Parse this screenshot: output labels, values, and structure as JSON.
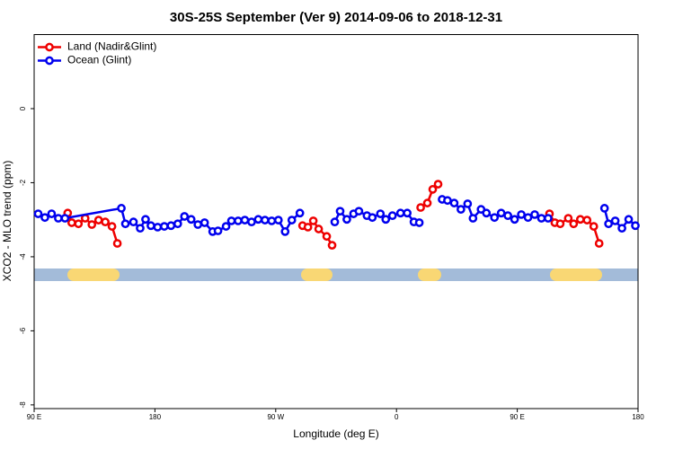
{
  "chart_data": {
    "type": "line",
    "title": "30S-25S September (Ver 9)   2014-09-06 to 2018-12-31",
    "x_label": "Longitude (deg E)",
    "y_label": "XCO2 - MLO trend (ppm)",
    "xlim": [
      90,
      540
    ],
    "ylim": [
      -8.1,
      2.0
    ],
    "xticks": [
      {
        "value": 90,
        "label": "90 E"
      },
      180,
      {
        "value": 270,
        "label": "90 W"
      },
      {
        "value": 360,
        "label": "0"
      },
      {
        "value": 450,
        "label": "90 E"
      },
      {
        "value": 540,
        "label": "180"
      }
    ],
    "yticks": [
      0,
      -2,
      -4,
      -6,
      -8
    ],
    "legend": "top-left",
    "series": [
      {
        "name": "Land (Nadir&Glint)",
        "color": "#ee0000",
        "x": [
          115,
          118,
          123,
          128,
          133,
          138,
          143,
          148,
          152,
          null,
          290,
          294,
          298,
          302,
          308,
          312,
          null,
          378,
          383,
          387,
          391,
          null,
          474,
          478,
          482,
          488,
          492,
          497,
          502,
          507,
          511
        ],
        "values": [
          -2.82,
          -3.08,
          -3.11,
          -2.96,
          -3.13,
          -3.01,
          -3.06,
          -3.18,
          -3.64,
          null,
          -3.16,
          -3.2,
          -3.03,
          -3.25,
          -3.45,
          -3.69,
          null,
          -2.67,
          -2.55,
          -2.18,
          -2.04,
          null,
          -2.84,
          -3.08,
          -3.11,
          -2.96,
          -3.11,
          -2.99,
          -3.01,
          -3.18,
          -3.64
        ]
      },
      {
        "name": "Ocean (Glint)",
        "color": "#0000ee",
        "x": [
          93,
          98,
          103,
          108,
          113,
          155,
          158,
          164,
          169,
          173,
          177,
          182,
          187,
          192,
          197,
          202,
          207,
          212,
          217,
          223,
          227,
          233,
          237,
          242,
          247,
          252,
          257,
          262,
          267,
          272,
          277,
          282,
          288,
          null,
          314,
          318,
          323,
          328,
          332,
          338,
          342,
          348,
          352,
          357,
          363,
          368,
          373,
          377,
          null,
          394,
          398,
          403,
          408,
          413,
          417,
          423,
          427,
          433,
          438,
          443,
          448,
          453,
          458,
          463,
          468,
          473,
          null,
          515,
          518,
          523,
          528,
          533,
          538
        ],
        "values": [
          -2.84,
          -2.94,
          -2.84,
          -2.96,
          -2.96,
          -2.69,
          -3.11,
          -3.06,
          -3.23,
          -2.99,
          -3.16,
          -3.2,
          -3.18,
          -3.16,
          -3.11,
          -2.91,
          -2.99,
          -3.13,
          -3.08,
          -3.32,
          -3.3,
          -3.18,
          -3.03,
          -3.03,
          -3.01,
          -3.06,
          -2.99,
          -3.01,
          -3.03,
          -3.01,
          -3.32,
          -3.01,
          -2.82,
          null,
          -3.06,
          -2.77,
          -2.99,
          -2.84,
          -2.77,
          -2.89,
          -2.94,
          -2.84,
          -2.99,
          -2.89,
          -2.82,
          -2.82,
          -3.06,
          -3.08,
          null,
          -2.45,
          -2.48,
          -2.55,
          -2.72,
          -2.57,
          -2.96,
          -2.72,
          -2.82,
          -2.94,
          -2.82,
          -2.89,
          -2.99,
          -2.86,
          -2.94,
          -2.86,
          -2.96,
          -2.96,
          null,
          -2.69,
          -3.11,
          -3.03,
          -3.23,
          -2.99,
          -3.16
        ]
      }
    ]
  }
}
